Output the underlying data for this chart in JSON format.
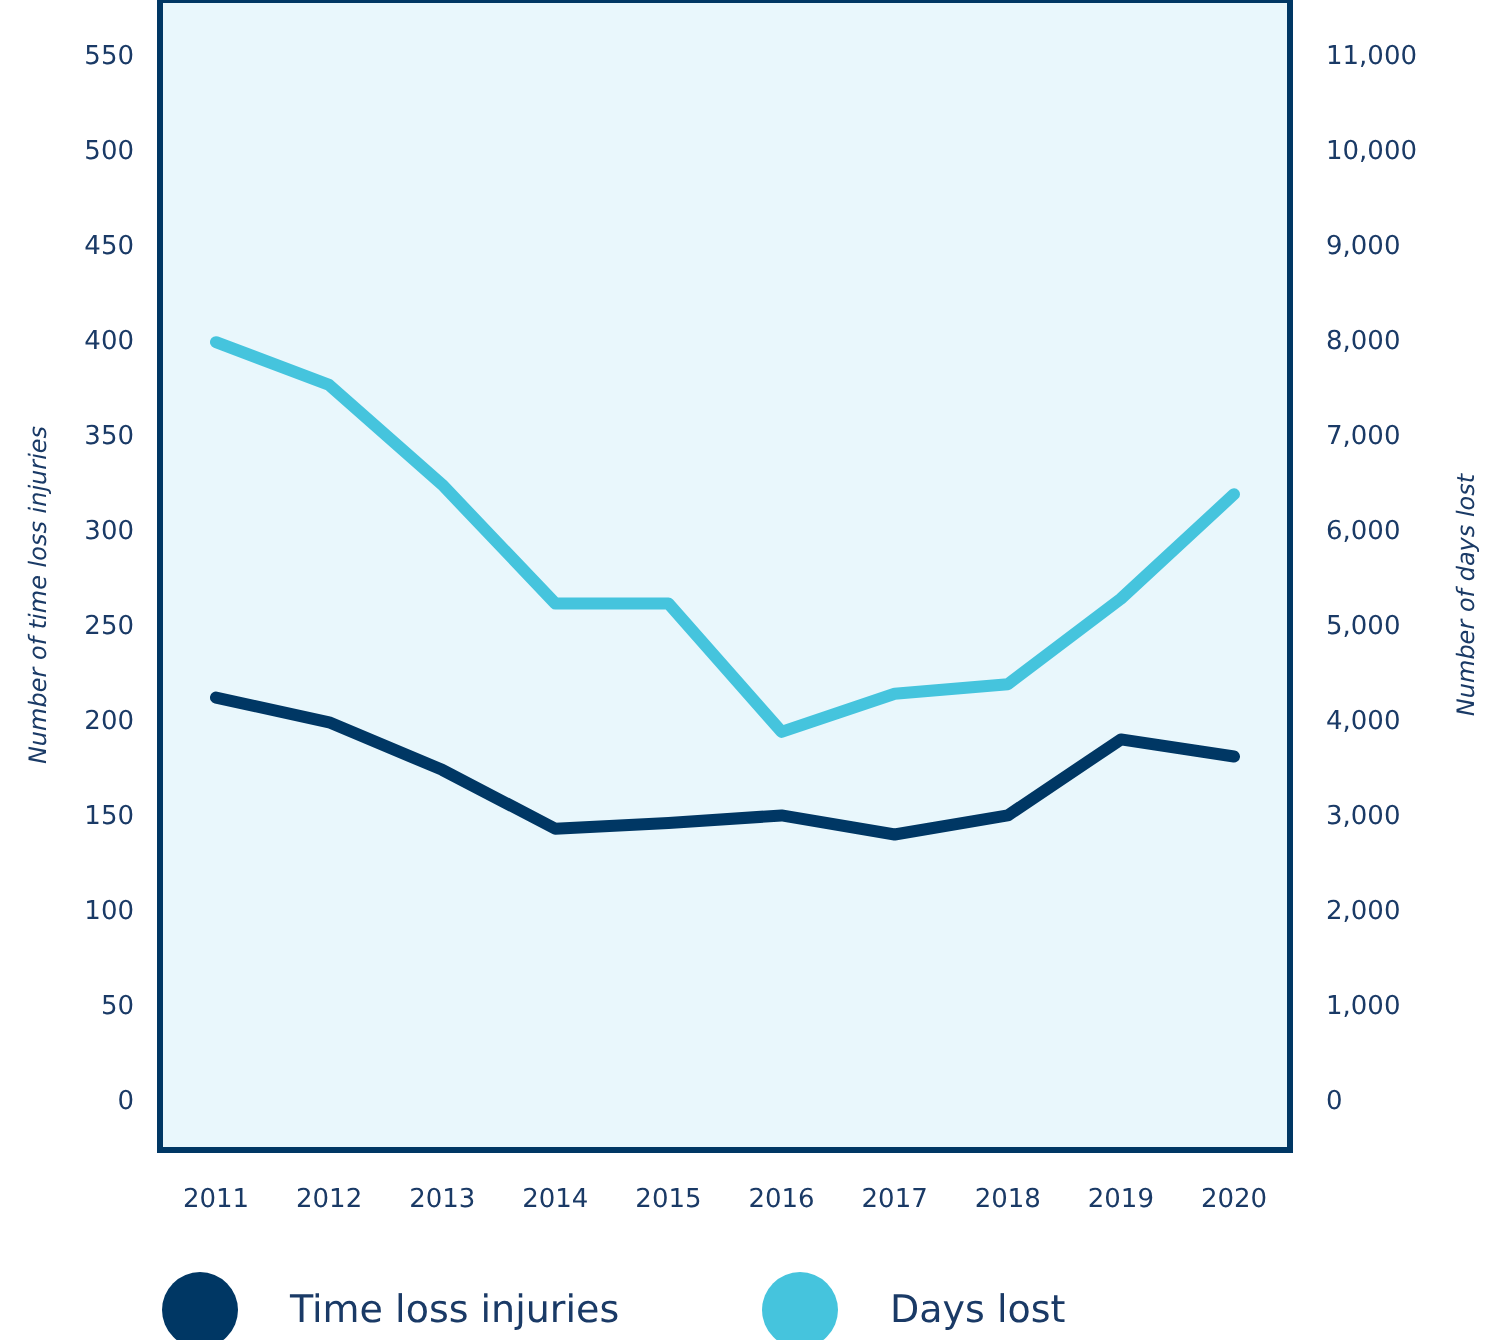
{
  "chart_data": {
    "type": "line",
    "categories": [
      "2011",
      "2012",
      "2013",
      "2014",
      "2015",
      "2016",
      "2017",
      "2018",
      "2019",
      "2020"
    ],
    "ylabel": "Number of time loss injuries",
    "y2label": "Number of days lost",
    "ylim": [
      -25,
      580
    ],
    "yticks": [
      0,
      50,
      100,
      150,
      200,
      250,
      300,
      350,
      400,
      450,
      500,
      550
    ],
    "y2lim": [
      -500,
      11600
    ],
    "y2ticks": [
      0,
      {
        "value": 1000,
        "label": "1,000"
      },
      {
        "value": 2000,
        "label": "2,000"
      },
      {
        "value": 3000,
        "label": "3,000"
      },
      {
        "value": 4000,
        "label": "4,000"
      },
      {
        "value": 5000,
        "label": "5,000"
      },
      {
        "value": 6000,
        "label": "6,000"
      },
      {
        "value": 7000,
        "label": "7,000"
      },
      {
        "value": 8000,
        "label": "8,000"
      },
      {
        "value": 9000,
        "label": "9,000"
      },
      {
        "value": 10000,
        "label": "10,000"
      },
      {
        "value": 11000,
        "label": "11,000"
      }
    ],
    "series": [
      {
        "name": "Time loss injuries",
        "color": "#003764",
        "values": [
          213,
          200,
          175,
          144,
          147,
          151,
          141,
          151,
          191,
          182
        ]
      },
      {
        "name": "Days lost",
        "color": "#45c4dd",
        "axis": "y2",
        "values": [
          8000,
          7550,
          6500,
          5250,
          5250,
          3900,
          4300,
          4400,
          5300,
          6400
        ]
      }
    ],
    "legend": "bottom",
    "grid": false,
    "marker": "none",
    "line_style": "solid"
  }
}
